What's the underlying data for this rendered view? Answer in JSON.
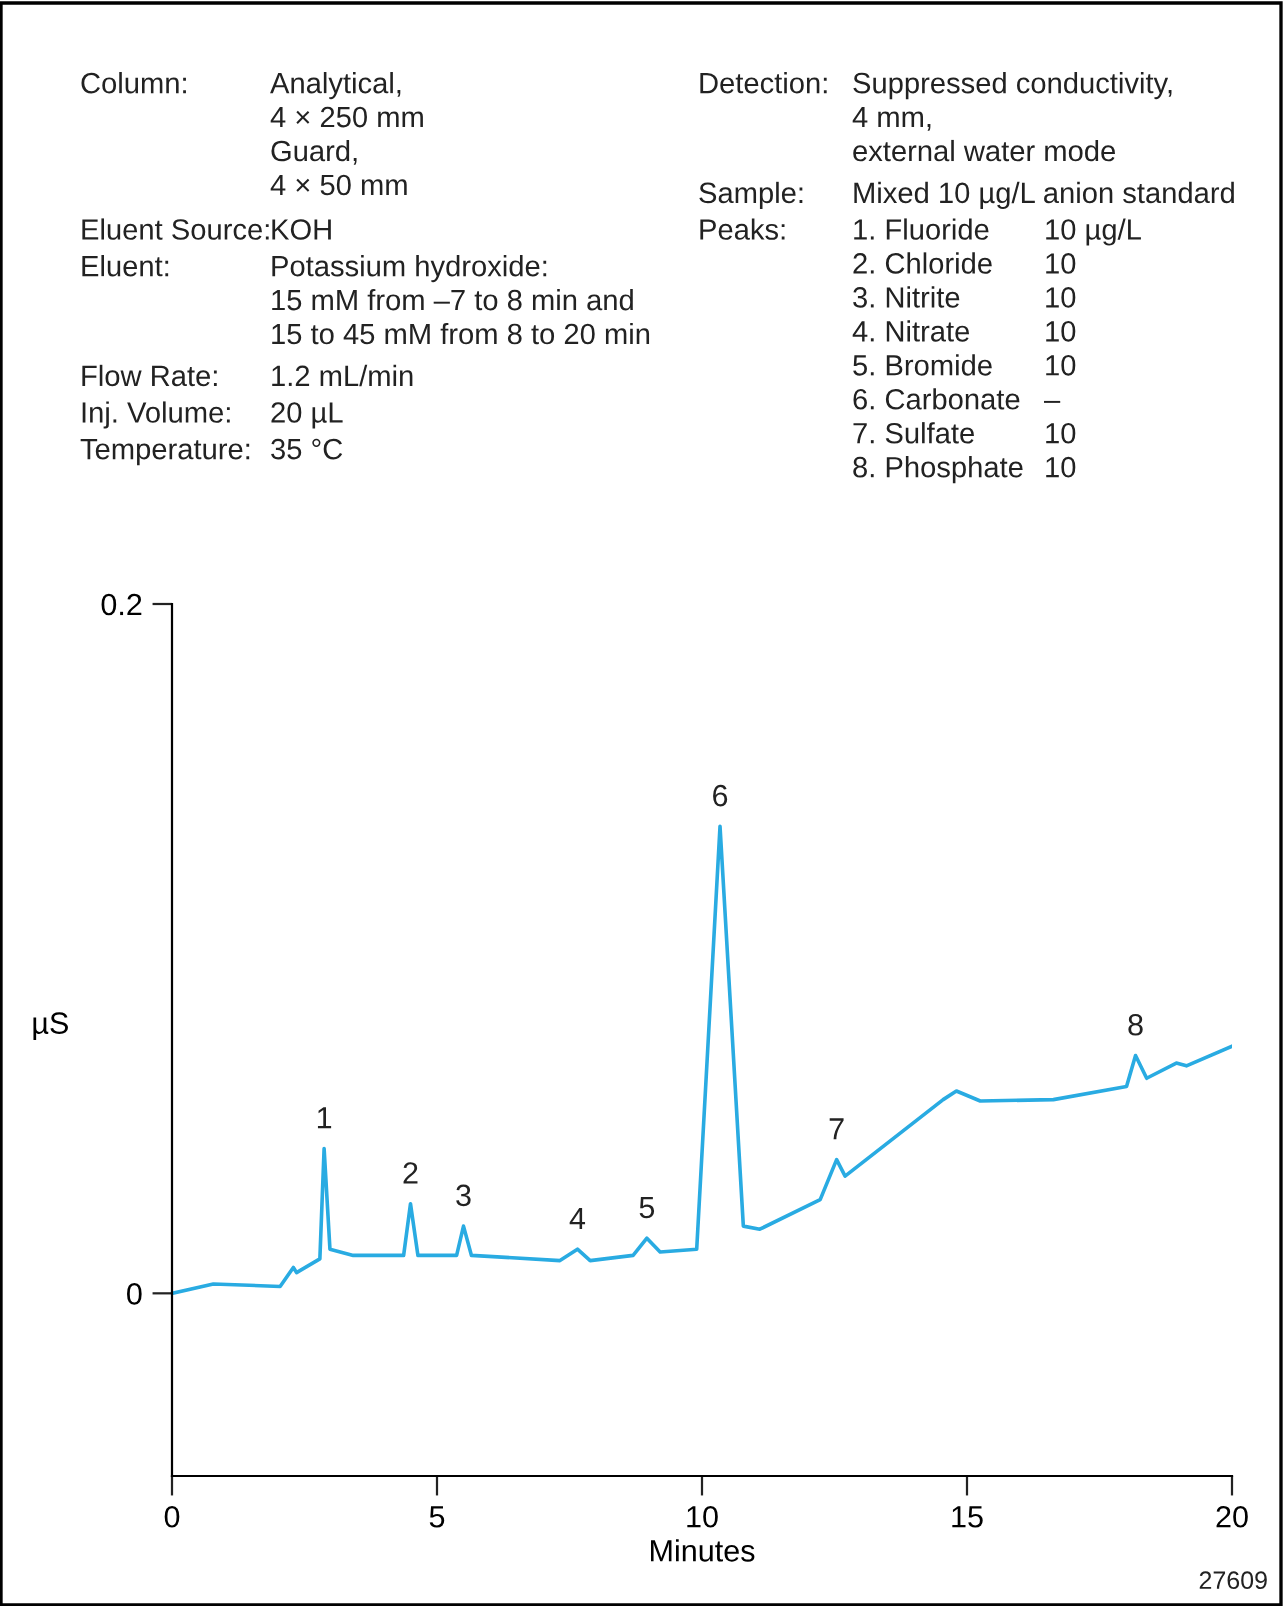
{
  "chart_data": {
    "type": "line",
    "xlabel": "Minutes",
    "ylabel": "µS",
    "x": [
      0.0,
      0.78,
      2.04,
      2.29,
      2.35,
      2.79,
      2.87,
      2.98,
      3.42,
      4.37,
      4.5,
      4.64,
      5.37,
      5.5,
      5.65,
      7.32,
      7.65,
      7.89,
      8.7,
      8.96,
      9.21,
      9.9,
      10.34,
      10.78,
      11.09,
      12.23,
      12.54,
      12.7,
      14.55,
      14.8,
      15.25,
      16.63,
      18.01,
      18.18,
      18.39,
      18.95,
      19.14,
      20.0
    ],
    "series": [
      {
        "color": "#29abe2",
        "values": [
          0.0,
          0.0027,
          0.002,
          0.0075,
          0.006,
          0.01,
          0.042,
          0.0128,
          0.011,
          0.011,
          0.026,
          0.011,
          0.011,
          0.0195,
          0.011,
          0.0095,
          0.0128,
          0.0095,
          0.011,
          0.016,
          0.012,
          0.0128,
          0.1355,
          0.0195,
          0.0186,
          0.0272,
          0.0388,
          0.034,
          0.0562,
          0.0587,
          0.0558,
          0.0562,
          0.06,
          0.069,
          0.0624,
          0.0668,
          0.066,
          0.0717
        ]
      }
    ],
    "xlim": [
      0,
      20
    ],
    "xticks": [
      0,
      5,
      10,
      15,
      20
    ],
    "ylim": [
      -0.053,
      0.2
    ],
    "yticks": [
      0,
      0.2
    ],
    "grid": false,
    "legend": false,
    "marker": "none",
    "line_style": "solid",
    "annotations": [
      "Column:",
      "Analytical,\n4 × 250 mm\nGuard,\n4 × 50 mm",
      "Eluent Source:",
      "KOH",
      "Eluent:",
      "Potassium hydroxide:\n15 mM from –7 to 8 min and\n15 to 45 mM from 8 to 20 min",
      "Flow Rate:",
      "1.2 mL/min",
      "Inj. Volume:",
      "20 µL",
      "Temperature:",
      "35 °C",
      "Detection:",
      "Suppressed conductivity,\n4 mm,\nexternal water mode",
      "Sample:",
      "Mixed 10 µg/L anion standard",
      "Peaks:",
      "1. Fluoride\n2. Chloride\n3. Nitrite\n4. Nitrate\n5. Bromide\n6. Carbonate\n7. Sulfate\n8. Phosphate",
      "10 µg/L\n10\n10\n10\n10\n–\n10\n10",
      {
        "text": "1",
        "x": 2.87,
        "y": 0.042
      },
      {
        "text": "2",
        "x": 4.5,
        "y": 0.026
      },
      {
        "text": "3",
        "x": 5.5,
        "y": 0.0195
      },
      {
        "text": "4",
        "x": 7.65,
        "y": 0.0128
      },
      {
        "text": "5",
        "x": 8.96,
        "y": 0.016
      },
      {
        "text": "6",
        "x": 10.34,
        "y": 0.1355
      },
      {
        "text": "7",
        "x": 12.54,
        "y": 0.0388
      },
      {
        "text": "8",
        "x": 18.18,
        "y": 0.069
      },
      "27609"
    ]
  }
}
